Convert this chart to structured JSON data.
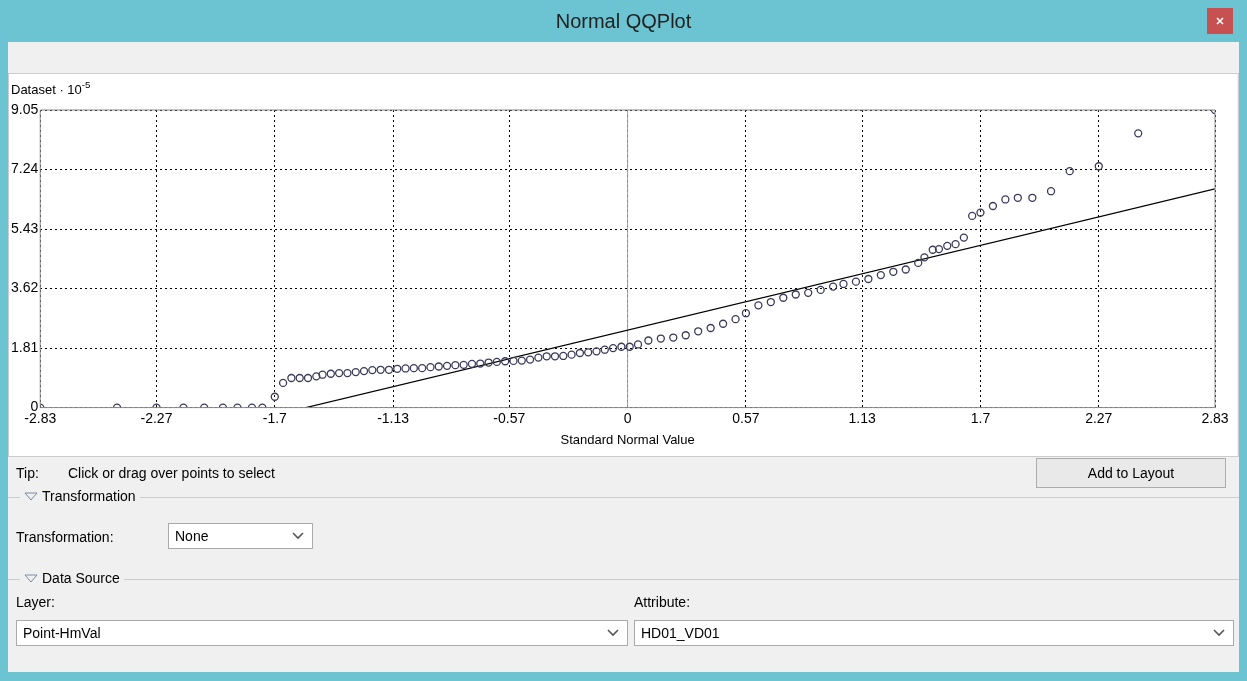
{
  "chart_data": {
    "type": "scatter",
    "title": "Normal QQPlot",
    "xlabel": "Standard Normal Value",
    "ylabel": "Dataset · 10$^{-5}$",
    "xlim": [
      -2.83,
      2.83
    ],
    "ylim": [
      0,
      9.05
    ],
    "xticks": [
      -2.83,
      -2.27,
      -1.7,
      -1.13,
      -0.57,
      0,
      0.57,
      1.13,
      1.7,
      2.27,
      2.83
    ],
    "yticks": [
      0,
      1.81,
      3.62,
      5.43,
      7.24,
      9.05
    ],
    "grid": true,
    "legend": false,
    "ref_lines": [
      {
        "axis": "x",
        "value": 0,
        "color": "#a0a0a0",
        "line_style": "solid"
      }
    ],
    "series": [
      {
        "marker": "circle",
        "color": "#3a3a5a",
        "x": [
          -2.83,
          -2.46,
          -2.27,
          -2.14,
          -2.04,
          -1.95,
          -1.88,
          -1.81,
          -1.76,
          -1.7,
          -1.66,
          -1.62,
          -1.58,
          -1.54,
          -1.5,
          -1.47,
          -1.43,
          -1.39,
          -1.35,
          -1.31,
          -1.27,
          -1.23,
          -1.19,
          -1.15,
          -1.11,
          -1.07,
          -1.03,
          -0.99,
          -0.95,
          -0.91,
          -0.87,
          -0.83,
          -0.79,
          -0.75,
          -0.71,
          -0.67,
          -0.63,
          -0.59,
          -0.55,
          -0.51,
          -0.47,
          -0.43,
          -0.39,
          -0.35,
          -0.31,
          -0.27,
          -0.23,
          -0.19,
          -0.15,
          -0.11,
          -0.07,
          -0.03,
          0.01,
          0.05,
          0.1,
          0.16,
          0.22,
          0.28,
          0.34,
          0.4,
          0.46,
          0.52,
          0.57,
          0.63,
          0.69,
          0.75,
          0.81,
          0.87,
          0.93,
          0.99,
          1.04,
          1.1,
          1.16,
          1.22,
          1.28,
          1.34,
          1.4,
          1.43,
          1.47,
          1.5,
          1.54,
          1.58,
          1.62,
          1.66,
          1.7,
          1.76,
          1.82,
          1.88,
          1.95,
          2.04,
          2.13,
          2.27,
          2.46,
          2.83
        ],
        "values": [
          0,
          0,
          0,
          0,
          0,
          0,
          0,
          0,
          0,
          0.33,
          0.75,
          0.9,
          0.9,
          0.9,
          0.95,
          1,
          1.03,
          1.05,
          1.05,
          1.08,
          1.11,
          1.14,
          1.15,
          1.15,
          1.18,
          1.19,
          1.2,
          1.2,
          1.23,
          1.25,
          1.27,
          1.29,
          1.3,
          1.33,
          1.34,
          1.37,
          1.39,
          1.41,
          1.42,
          1.43,
          1.46,
          1.52,
          1.56,
          1.56,
          1.57,
          1.61,
          1.66,
          1.68,
          1.71,
          1.76,
          1.81,
          1.85,
          1.85,
          1.92,
          2.04,
          2.1,
          2.13,
          2.2,
          2.32,
          2.42,
          2.55,
          2.69,
          2.87,
          3.11,
          3.21,
          3.34,
          3.44,
          3.49,
          3.58,
          3.68,
          3.76,
          3.83,
          3.91,
          4.03,
          4.13,
          4.2,
          4.4,
          4.57,
          4.8,
          4.82,
          4.92,
          4.97,
          5.17,
          5.83,
          5.93,
          6.13,
          6.33,
          6.38,
          6.38,
          6.58,
          7.19,
          7.34,
          8.34,
          9.05
        ]
      },
      {
        "type": "line",
        "color": "#000000",
        "x": [
          -1.55,
          2.83
        ],
        "values": [
          0,
          6.65
        ]
      }
    ],
    "annotations": [
      "Tip:",
      "Click or drag over points to select",
      "Add to Layout",
      "Transformation",
      "Transformation:",
      "None",
      "Data Source",
      "Layer:",
      "Point-HmVal",
      "Attribute:",
      "HD01_VD01"
    ]
  }
}
